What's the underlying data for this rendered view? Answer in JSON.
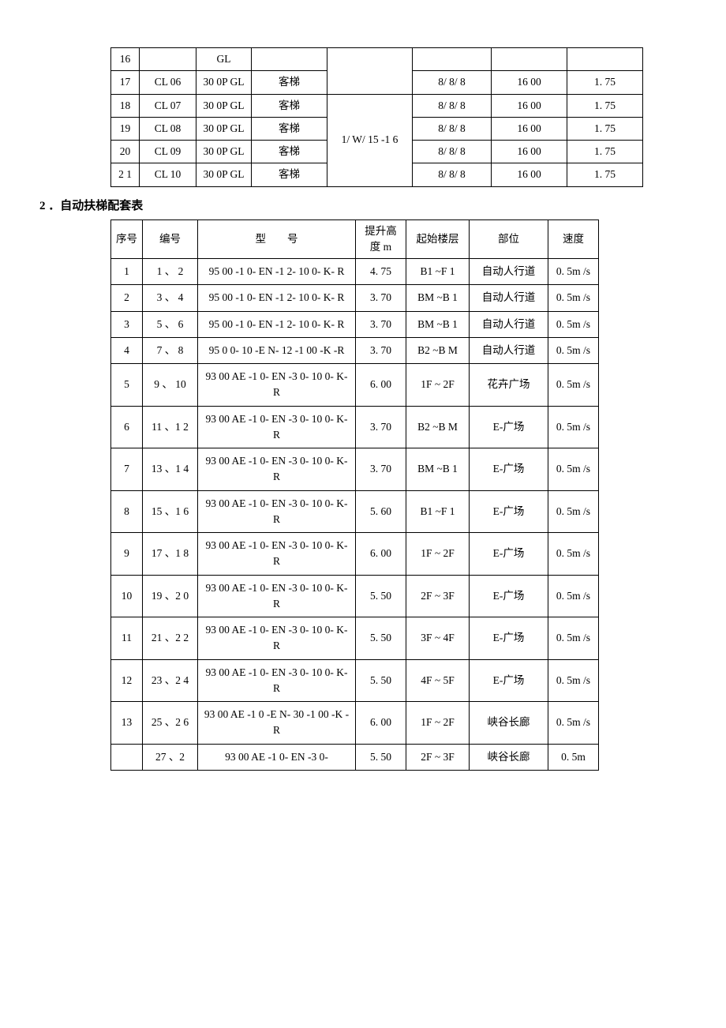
{
  "colors": {
    "background": "#ffffff",
    "text": "#000000",
    "border": "#000000"
  },
  "typography": {
    "font_family": "SimSun, Times New Roman, serif",
    "base_size_pt": 10.5,
    "title_size_pt": 11,
    "title_weight": "bold"
  },
  "table1": {
    "shared_floor_1": "",
    "shared_floor_2": "1/ W/ 15 -1 6",
    "rows": [
      {
        "seq": "16",
        "code": "",
        "model": "GL",
        "type": "",
        "spec": "",
        "cap": "",
        "speed": ""
      },
      {
        "seq": "17",
        "code": "CL  06",
        "model": "30  0P GL",
        "type": "客梯",
        "spec": "8/ 8/ 8",
        "cap": "16  00",
        "speed": "1. 75"
      },
      {
        "seq": "18",
        "code": "CL  07",
        "model": "30  0P GL",
        "type": "客梯",
        "spec": "8/ 8/ 8",
        "cap": "16  00",
        "speed": "1. 75"
      },
      {
        "seq": "19",
        "code": "CL  08",
        "model": "30  0P GL",
        "type": "客梯",
        "spec": "8/ 8/ 8",
        "cap": "16  00",
        "speed": "1. 75"
      },
      {
        "seq": "20",
        "code": "CL  09",
        "model": "30  0P GL",
        "type": "客梯",
        "spec": "8/ 8/ 8",
        "cap": "16  00",
        "speed": "1. 75"
      },
      {
        "seq": "2 1",
        "code": "CL  10",
        "model": "30  0P GL",
        "type": "客梯",
        "spec": "8/ 8/ 8",
        "cap": "16  00",
        "speed": "1. 75"
      }
    ]
  },
  "section2_title": "2 ．自动扶梯配套表",
  "table2": {
    "headers": {
      "seq": "序号",
      "num": "编号",
      "model": "型　　号",
      "height": "提升高度 m",
      "floor": "起始楼层",
      "pos": "部位",
      "speed": "速度"
    },
    "rows": [
      {
        "seq": "1",
        "num": "1 、 2",
        "model": "95  00 -1  0- EN -1  2- 10  0- K- R",
        "height": "4. 75",
        "floor": "B1 ~F  1",
        "pos": "自动人行道",
        "speed": "0. 5m /s"
      },
      {
        "seq": "2",
        "num": "3 、 4",
        "model": "95  00 -1  0- EN -1  2- 10  0- K- R",
        "height": "3. 70",
        "floor": "BM ~B 1",
        "pos": "自动人行道",
        "speed": "0. 5m /s"
      },
      {
        "seq": "3",
        "num": "5 、 6",
        "model": "95  00 -1  0- EN -1  2- 10  0- K- R",
        "height": "3. 70",
        "floor": "BM ~B 1",
        "pos": "自动人行道",
        "speed": "0. 5m /s"
      },
      {
        "seq": "4",
        "num": "7 、 8",
        "model": "95  0  0- 10 -E  N- 12 -1  00 -K -R",
        "height": "3. 70",
        "floor": "B2 ~B M",
        "pos": "自动人行道",
        "speed": "0. 5m /s"
      },
      {
        "seq": "5",
        "num": "9 、 10",
        "model": "93  00  AE -1  0- EN -3  0- 10  0- K- R",
        "height": "6. 00",
        "floor": "1F ~ 2F",
        "pos": "花卉广场",
        "speed": "0. 5m /s"
      },
      {
        "seq": "6",
        "num": "11  、1 2",
        "model": "93  00  AE -1  0- EN -3  0- 10  0- K- R",
        "height": "3. 70",
        "floor": "B2 ~B M",
        "pos": "E-广场",
        "speed": "0. 5m /s"
      },
      {
        "seq": "7",
        "num": "13  、1 4",
        "model": "93  00  AE -1  0- EN -3  0- 10  0- K- R",
        "height": "3. 70",
        "floor": "BM ~B 1",
        "pos": "E-广场",
        "speed": "0. 5m /s"
      },
      {
        "seq": "8",
        "num": "15  、1 6",
        "model": "93  00  AE -1  0- EN -3  0- 10  0- K- R",
        "height": "5. 60",
        "floor": "B1 ~F  1",
        "pos": "E-广场",
        "speed": "0. 5m /s"
      },
      {
        "seq": "9",
        "num": "17  、1 8",
        "model": "93  00  AE -1  0- EN -3  0- 10  0- K- R",
        "height": "6. 00",
        "floor": "1F ~ 2F",
        "pos": "E-广场",
        "speed": "0. 5m /s"
      },
      {
        "seq": "10",
        "num": "19  、2 0",
        "model": "93  00  AE -1  0- EN -3  0- 10  0- K- R",
        "height": "5. 50",
        "floor": "2F ~ 3F",
        "pos": "E-广场",
        "speed": "0. 5m /s"
      },
      {
        "seq": "11",
        "num": "21  、2 2",
        "model": "93  00  AE -1  0- EN -3  0- 10  0- K- R",
        "height": "5. 50",
        "floor": "3F ~ 4F",
        "pos": "E-广场",
        "speed": "0. 5m /s"
      },
      {
        "seq": "12",
        "num": "23  、2 4",
        "model": "93  00  AE -1  0- EN -3  0- 10  0- K- R",
        "height": "5. 50",
        "floor": "4F ~ 5F",
        "pos": "E-广场",
        "speed": "0. 5m /s"
      },
      {
        "seq": "13",
        "num": "25  、2 6",
        "model": "93  00  AE -1  0 -E  N- 30 -1  00 -K -R",
        "height": "6. 00",
        "floor": "1F ~ 2F",
        "pos": "峡谷长廊",
        "speed": "0. 5m /s"
      },
      {
        "seq": "",
        "num": "27  、2",
        "model": "93  00  AE -1  0- EN -3  0-",
        "height": "5. 50",
        "floor": "2F ~ 3F",
        "pos": "峡谷长廊",
        "speed": "0. 5m"
      }
    ]
  }
}
